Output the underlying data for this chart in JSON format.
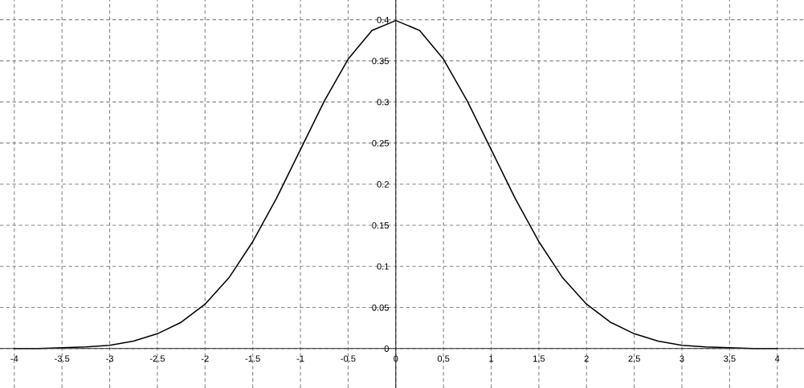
{
  "chart_data": {
    "type": "line",
    "x": [
      -4,
      -3.75,
      -3.5,
      -3.25,
      -3,
      -2.75,
      -2.5,
      -2.25,
      -2,
      -1.75,
      -1.5,
      -1.25,
      -1,
      -0.75,
      -0.5,
      -0.25,
      0,
      0.25,
      0.5,
      0.75,
      1,
      1.25,
      1.5,
      1.75,
      2,
      2.25,
      2.5,
      2.75,
      3,
      3.25,
      3.5,
      3.75,
      4
    ],
    "series": [
      {
        "color": "#000000",
        "values": [
          0.0,
          0.0,
          0.001,
          0.002,
          0.004,
          0.009,
          0.018,
          0.032,
          0.054,
          0.086,
          0.13,
          0.183,
          0.242,
          0.301,
          0.352,
          0.387,
          0.399,
          0.387,
          0.352,
          0.301,
          0.242,
          0.183,
          0.13,
          0.086,
          0.054,
          0.032,
          0.018,
          0.009,
          0.004,
          0.002,
          0.001,
          0.0,
          0.0
        ]
      }
    ],
    "xlim": [
      -4.15,
      4.28
    ],
    "ylim": [
      -0.048,
      0.424
    ],
    "xticks": [
      -4,
      -3.5,
      -3,
      -2.5,
      -2,
      -1.5,
      -1,
      -0.5,
      0,
      0.5,
      1,
      1.5,
      2,
      2.5,
      3,
      3.5,
      4
    ],
    "yticks": [
      0,
      0.05,
      0.1,
      0.15,
      0.2,
      0.25,
      0.3,
      0.35,
      0.4
    ],
    "grid": true,
    "marker": "none",
    "line_style": "solid"
  }
}
